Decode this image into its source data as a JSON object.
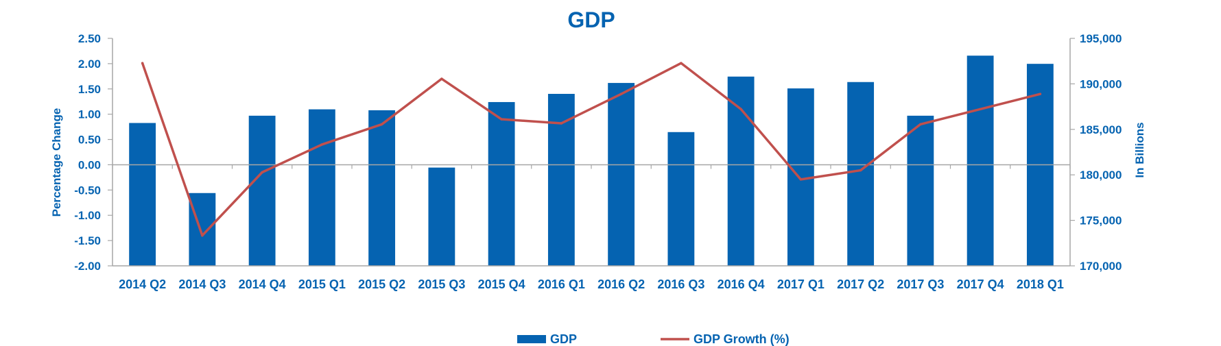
{
  "chart_data": {
    "type": "bar",
    "title": "GDP",
    "categories": [
      "2014 Q2",
      "2014 Q3",
      "2014 Q4",
      "2015 Q1",
      "2015 Q2",
      "2015 Q3",
      "2015 Q4",
      "2016 Q1",
      "2016 Q2",
      "2016 Q3",
      "2016 Q4",
      "2017 Q1",
      "2017 Q2",
      "2017 Q3",
      "2017 Q4",
      "2018 Q1"
    ],
    "series": [
      {
        "name": "GDP",
        "type": "bar",
        "axis": "right",
        "color": "#0563b1",
        "values": [
          185700,
          178000,
          186500,
          187200,
          187100,
          180800,
          188000,
          188900,
          190100,
          184700,
          190800,
          189500,
          190200,
          186500,
          193100,
          192200
        ]
      },
      {
        "name": "GDP Growth (%)",
        "type": "line",
        "axis": "left",
        "color": "#c0504d",
        "values": [
          2.01,
          -1.4,
          -0.15,
          0.4,
          0.8,
          1.7,
          0.9,
          0.82,
          1.4,
          2.01,
          1.1,
          -0.29,
          -0.11,
          0.8,
          1.1,
          1.4
        ]
      }
    ],
    "ylabel": "Percentage Change",
    "ylim": [
      -2.0,
      2.5
    ],
    "yticks": [
      "2.50",
      "2.00",
      "1.50",
      "1.00",
      "0.50",
      "0.00",
      "-0.50",
      "-1.00",
      "-1.50",
      "-2.00"
    ],
    "y2label": "In Billions",
    "y2lim": [
      170000,
      195000
    ],
    "y2ticks": [
      "195,000",
      "190,000",
      "185,000",
      "180,000",
      "175,000",
      "170,000"
    ],
    "legend_position": "bottom",
    "text_color": "#0563b1",
    "grid": false
  }
}
